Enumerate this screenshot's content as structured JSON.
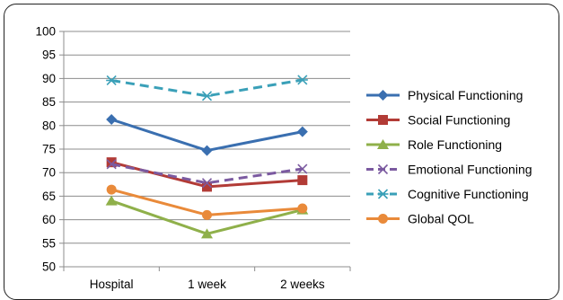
{
  "chart_data": {
    "type": "line",
    "title": "",
    "xlabel": "",
    "ylabel": "",
    "categories": [
      "Hospital",
      "1 week",
      "2 weeks"
    ],
    "ylim": [
      50,
      100
    ],
    "yticks": [
      "50",
      "55",
      "60",
      "65",
      "70",
      "75",
      "80",
      "85",
      "90",
      "95",
      "100"
    ],
    "grid": true,
    "legend_position": "right",
    "series": [
      {
        "name": "Physical Functioning",
        "values": [
          81.3,
          74.7,
          78.7
        ],
        "color": "#3a6fb0",
        "marker": "diamond",
        "dash": "solid"
      },
      {
        "name": "Social Functioning",
        "values": [
          72.2,
          67.0,
          68.4
        ],
        "color": "#b23b36",
        "marker": "square",
        "dash": "solid"
      },
      {
        "name": "Role Functioning",
        "values": [
          64.0,
          57.0,
          62.1
        ],
        "color": "#8fb04a",
        "marker": "triangle",
        "dash": "solid"
      },
      {
        "name": "Emotional Functioning",
        "values": [
          71.8,
          67.8,
          70.8
        ],
        "color": "#7b5aa0",
        "marker": "x",
        "dash": "dashed"
      },
      {
        "name": "Cognitive Functioning",
        "values": [
          89.6,
          86.3,
          89.7
        ],
        "color": "#3aa0b8",
        "marker": "asterisk",
        "dash": "dashed"
      },
      {
        "name": "Global QOL",
        "values": [
          66.4,
          61.0,
          62.4
        ],
        "color": "#e98a3a",
        "marker": "circle",
        "dash": "solid"
      }
    ]
  }
}
